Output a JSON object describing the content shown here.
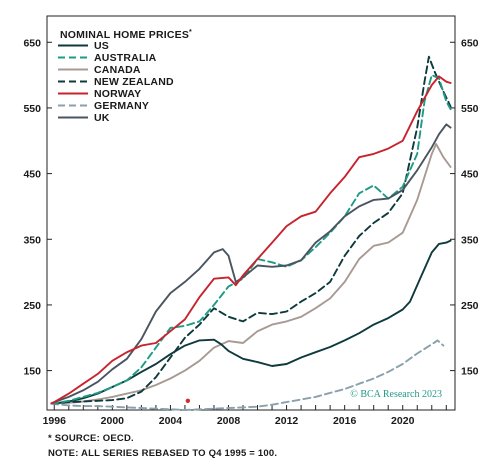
{
  "chart_data": {
    "type": "line",
    "title": "NOMINAL HOME PRICES",
    "title_mark": "*",
    "xlim": [
      1995.5,
      2023.6
    ],
    "ylim": [
      90,
      690
    ],
    "y_ticks": [
      150,
      250,
      350,
      450,
      550,
      650
    ],
    "x_ticks": [
      1996,
      2000,
      2004,
      2008,
      2012,
      2016,
      2020
    ],
    "grid": false,
    "legend_position": "top-left",
    "credit": "© BCA Research 2023",
    "footnote": "* SOURCE: OECD.",
    "note": "NOTE: ALL SERIES REBASED TO Q4 1995 = 100.",
    "marker": {
      "x": 2005.2,
      "y": 104,
      "color": "#d62a2a"
    },
    "series": [
      {
        "name": "US",
        "color": "#0e3a3d",
        "dash": "solid",
        "points": [
          [
            1995.8,
            100
          ],
          [
            1996,
            100
          ],
          [
            1997,
            103
          ],
          [
            1998,
            108
          ],
          [
            1999,
            115
          ],
          [
            2000,
            125
          ],
          [
            2001,
            135
          ],
          [
            2002,
            148
          ],
          [
            2003,
            160
          ],
          [
            2004,
            175
          ],
          [
            2005,
            188
          ],
          [
            2006,
            196
          ],
          [
            2007,
            197
          ],
          [
            2007.5,
            190
          ],
          [
            2008,
            180
          ],
          [
            2009,
            168
          ],
          [
            2010,
            163
          ],
          [
            2011,
            157
          ],
          [
            2012,
            160
          ],
          [
            2013,
            170
          ],
          [
            2014,
            178
          ],
          [
            2015,
            186
          ],
          [
            2016,
            196
          ],
          [
            2017,
            207
          ],
          [
            2018,
            220
          ],
          [
            2019,
            230
          ],
          [
            2020,
            243
          ],
          [
            2020.5,
            255
          ],
          [
            2021,
            280
          ],
          [
            2021.5,
            305
          ],
          [
            2022,
            330
          ],
          [
            2022.5,
            343
          ],
          [
            2023,
            345
          ],
          [
            2023.3,
            348
          ]
        ]
      },
      {
        "name": "AUSTRALIA",
        "color": "#1f9a86",
        "dash": "7,4",
        "points": [
          [
            1995.8,
            100
          ],
          [
            1996,
            100
          ],
          [
            1997,
            104
          ],
          [
            1998,
            110
          ],
          [
            1999,
            116
          ],
          [
            2000,
            125
          ],
          [
            2001,
            135
          ],
          [
            2002,
            155
          ],
          [
            2003,
            185
          ],
          [
            2004,
            215
          ],
          [
            2005,
            218
          ],
          [
            2006,
            225
          ],
          [
            2007,
            250
          ],
          [
            2008,
            278
          ],
          [
            2009,
            290
          ],
          [
            2010,
            320
          ],
          [
            2011,
            315
          ],
          [
            2012,
            308
          ],
          [
            2013,
            318
          ],
          [
            2014,
            338
          ],
          [
            2015,
            360
          ],
          [
            2016,
            385
          ],
          [
            2017,
            420
          ],
          [
            2018,
            432
          ],
          [
            2019,
            412
          ],
          [
            2020,
            430
          ],
          [
            2021,
            480
          ],
          [
            2021.5,
            560
          ],
          [
            2022,
            600
          ],
          [
            2022.5,
            595
          ],
          [
            2023,
            560
          ],
          [
            2023.3,
            548
          ]
        ]
      },
      {
        "name": "CANADA",
        "color": "#a89a92",
        "dash": "solid",
        "points": [
          [
            1995.8,
            100
          ],
          [
            1996,
            100
          ],
          [
            1997,
            101
          ],
          [
            1998,
            103
          ],
          [
            1999,
            106
          ],
          [
            2000,
            110
          ],
          [
            2001,
            115
          ],
          [
            2002,
            120
          ],
          [
            2003,
            128
          ],
          [
            2004,
            138
          ],
          [
            2005,
            150
          ],
          [
            2006,
            165
          ],
          [
            2007,
            185
          ],
          [
            2008,
            195
          ],
          [
            2009,
            192
          ],
          [
            2010,
            210
          ],
          [
            2011,
            220
          ],
          [
            2012,
            225
          ],
          [
            2013,
            232
          ],
          [
            2014,
            245
          ],
          [
            2015,
            260
          ],
          [
            2016,
            285
          ],
          [
            2017,
            320
          ],
          [
            2018,
            340
          ],
          [
            2019,
            345
          ],
          [
            2020,
            360
          ],
          [
            2021,
            410
          ],
          [
            2022,
            480
          ],
          [
            2022.3,
            495
          ],
          [
            2022.8,
            475
          ],
          [
            2023.3,
            460
          ]
        ]
      },
      {
        "name": "NEW ZEALAND",
        "color": "#0e3a3d",
        "dash": "7,4",
        "points": [
          [
            1995.8,
            100
          ],
          [
            1996,
            100
          ],
          [
            1997,
            102
          ],
          [
            1998,
            103
          ],
          [
            1999,
            104
          ],
          [
            2000,
            105
          ],
          [
            2001,
            108
          ],
          [
            2002,
            118
          ],
          [
            2003,
            140
          ],
          [
            2004,
            170
          ],
          [
            2005,
            200
          ],
          [
            2006,
            220
          ],
          [
            2007,
            245
          ],
          [
            2008,
            232
          ],
          [
            2009,
            225
          ],
          [
            2010,
            238
          ],
          [
            2011,
            236
          ],
          [
            2012,
            240
          ],
          [
            2013,
            255
          ],
          [
            2014,
            268
          ],
          [
            2015,
            285
          ],
          [
            2016,
            325
          ],
          [
            2017,
            355
          ],
          [
            2018,
            375
          ],
          [
            2019,
            390
          ],
          [
            2020,
            420
          ],
          [
            2021,
            520
          ],
          [
            2021.5,
            590
          ],
          [
            2021.8,
            628
          ],
          [
            2022.2,
            605
          ],
          [
            2022.8,
            575
          ],
          [
            2023.3,
            552
          ]
        ]
      },
      {
        "name": "NORWAY",
        "color": "#c8232c",
        "dash": "solid",
        "points": [
          [
            1995.8,
            100
          ],
          [
            1996,
            102
          ],
          [
            1997,
            115
          ],
          [
            1998,
            130
          ],
          [
            1999,
            145
          ],
          [
            2000,
            165
          ],
          [
            2001,
            178
          ],
          [
            2002,
            188
          ],
          [
            2003,
            192
          ],
          [
            2004,
            210
          ],
          [
            2005,
            228
          ],
          [
            2006,
            262
          ],
          [
            2007,
            290
          ],
          [
            2008,
            292
          ],
          [
            2008.5,
            280
          ],
          [
            2009,
            295
          ],
          [
            2010,
            320
          ],
          [
            2011,
            345
          ],
          [
            2012,
            370
          ],
          [
            2013,
            385
          ],
          [
            2014,
            392
          ],
          [
            2015,
            420
          ],
          [
            2016,
            445
          ],
          [
            2017,
            475
          ],
          [
            2018,
            480
          ],
          [
            2019,
            488
          ],
          [
            2020,
            500
          ],
          [
            2021,
            545
          ],
          [
            2022,
            585
          ],
          [
            2022.5,
            598
          ],
          [
            2023,
            590
          ],
          [
            2023.3,
            588
          ]
        ]
      },
      {
        "name": "GERMANY",
        "color": "#8aa0ad",
        "dash": "7,4",
        "points": [
          [
            1995.8,
            100
          ],
          [
            1996,
            99
          ],
          [
            1997,
            97
          ],
          [
            1998,
            96
          ],
          [
            1999,
            96
          ],
          [
            2000,
            95
          ],
          [
            2001,
            94
          ],
          [
            2002,
            93
          ],
          [
            2003,
            92
          ],
          [
            2004,
            91
          ],
          [
            2005,
            90
          ],
          [
            2006,
            91
          ],
          [
            2007,
            92
          ],
          [
            2008,
            93
          ],
          [
            2009,
            94
          ],
          [
            2010,
            95
          ],
          [
            2011,
            98
          ],
          [
            2012,
            102
          ],
          [
            2013,
            106
          ],
          [
            2014,
            110
          ],
          [
            2015,
            116
          ],
          [
            2016,
            122
          ],
          [
            2017,
            130
          ],
          [
            2018,
            138
          ],
          [
            2019,
            148
          ],
          [
            2020,
            160
          ],
          [
            2021,
            176
          ],
          [
            2022,
            190
          ],
          [
            2022.4,
            196
          ],
          [
            2022.8,
            188
          ]
        ]
      },
      {
        "name": "UK",
        "color": "#4a5560",
        "dash": "solid",
        "points": [
          [
            1995.8,
            100
          ],
          [
            1996,
            102
          ],
          [
            1997,
            110
          ],
          [
            1998,
            120
          ],
          [
            1999,
            133
          ],
          [
            2000,
            152
          ],
          [
            2001,
            168
          ],
          [
            2002,
            198
          ],
          [
            2003,
            240
          ],
          [
            2004,
            268
          ],
          [
            2005,
            285
          ],
          [
            2006,
            305
          ],
          [
            2007,
            330
          ],
          [
            2007.6,
            335
          ],
          [
            2008,
            325
          ],
          [
            2008.5,
            285
          ],
          [
            2009,
            292
          ],
          [
            2010,
            310
          ],
          [
            2011,
            308
          ],
          [
            2012,
            310
          ],
          [
            2013,
            318
          ],
          [
            2014,
            345
          ],
          [
            2015,
            362
          ],
          [
            2016,
            385
          ],
          [
            2017,
            400
          ],
          [
            2018,
            410
          ],
          [
            2019,
            412
          ],
          [
            2020,
            425
          ],
          [
            2021,
            455
          ],
          [
            2022,
            490
          ],
          [
            2022.5,
            510
          ],
          [
            2023,
            525
          ],
          [
            2023.3,
            520
          ]
        ]
      }
    ]
  }
}
